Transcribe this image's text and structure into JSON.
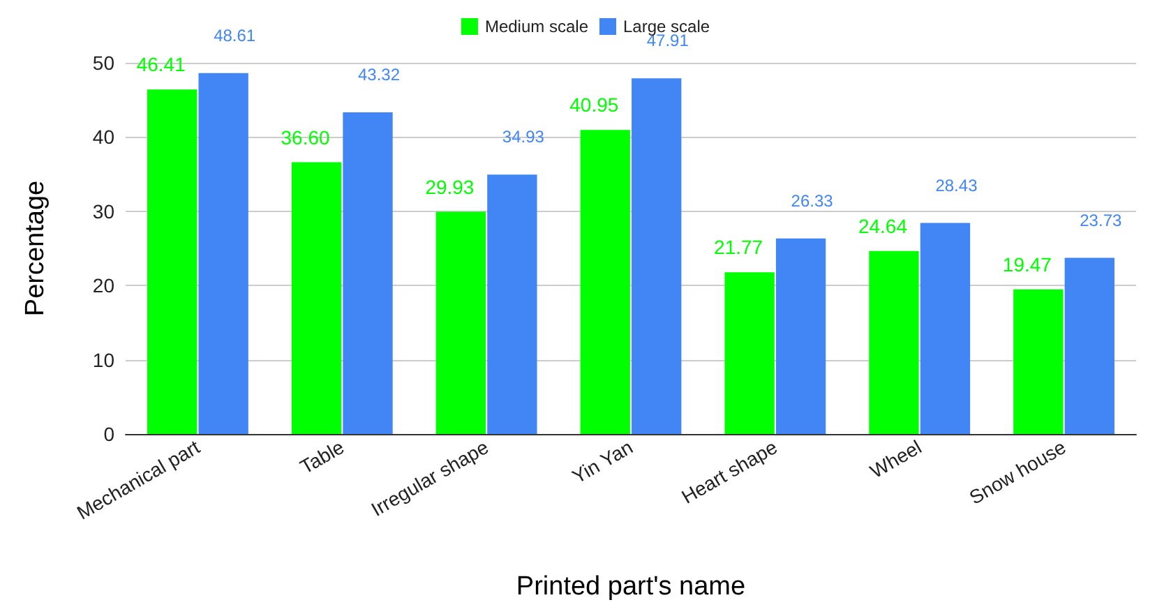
{
  "chart_data": {
    "type": "bar",
    "xlabel": "Printed part's name",
    "ylabel": "Percentage",
    "categories": [
      "Mechanical part",
      "Table",
      "Irregular shape",
      "Yin Yan",
      "Heart shape",
      "Wheel",
      "Snow house"
    ],
    "series": [
      {
        "name": "Medium scale",
        "color": "#00ff00",
        "values": [
          46.41,
          36.6,
          29.93,
          40.95,
          21.77,
          24.64,
          19.47
        ],
        "value_labels": [
          "46.41",
          "36.60",
          "29.93",
          "40.95",
          "21.77",
          "24.64",
          "19.47"
        ]
      },
      {
        "name": "Large scale",
        "color": "#4285f4",
        "values": [
          48.61,
          43.32,
          34.93,
          47.91,
          26.33,
          28.43,
          23.73
        ],
        "value_labels": [
          "48.61",
          "43.32",
          "34.93",
          "47.91",
          "26.33",
          "28.43",
          "23.73"
        ]
      }
    ],
    "ylim": [
      0,
      50
    ],
    "yticks": [
      0,
      10,
      20,
      30,
      40,
      50
    ],
    "grid": "y",
    "legend": "top"
  }
}
